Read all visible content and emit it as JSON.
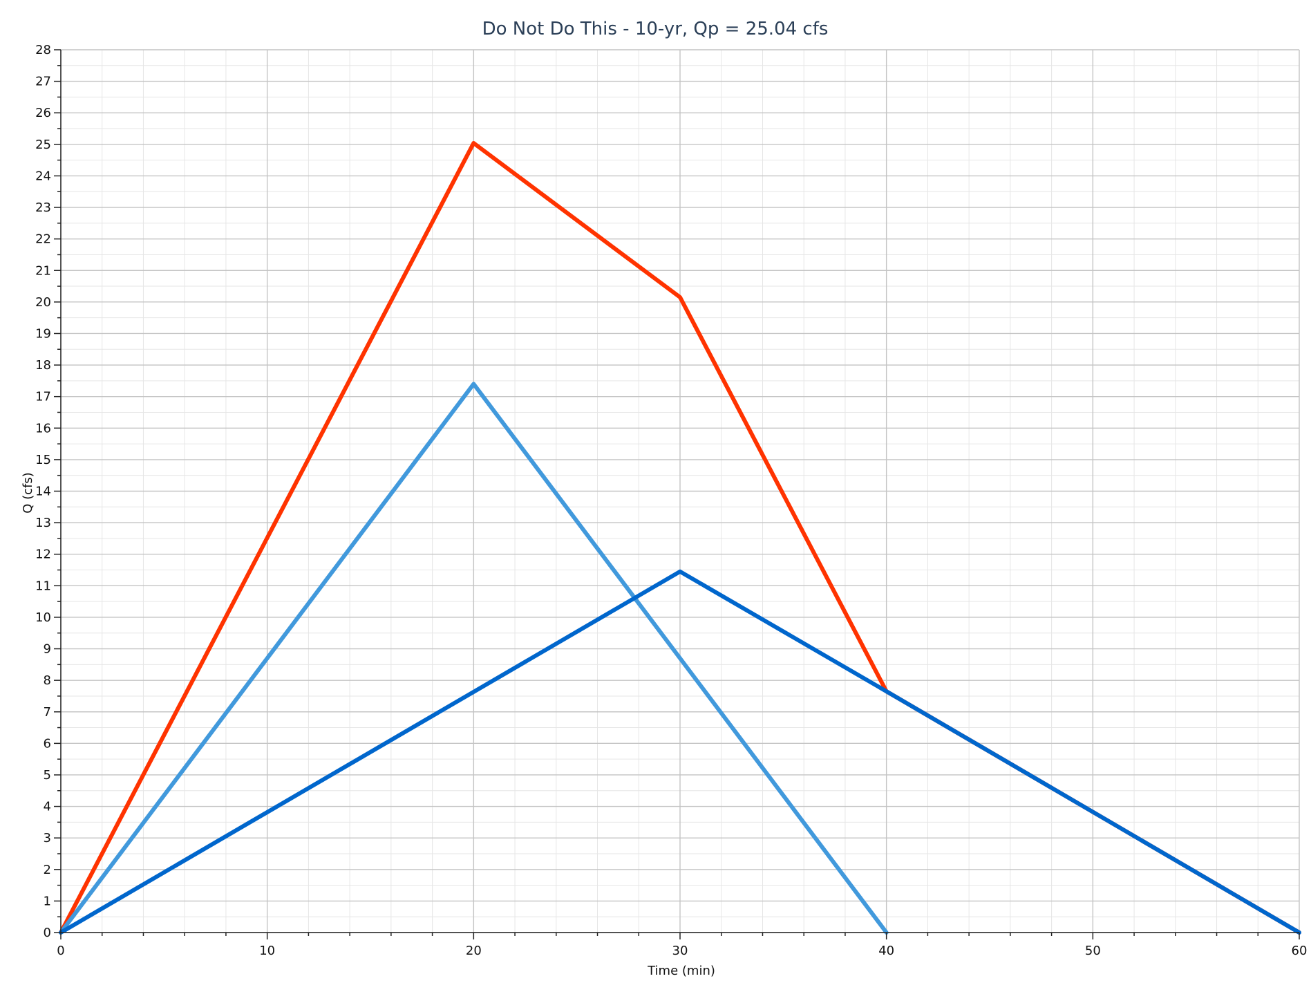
{
  "chart_data": {
    "type": "line",
    "title": "Do Not Do This - 10-yr, Qp = 25.04 cfs",
    "xlabel": "Time (min)",
    "ylabel": "Q (cfs)",
    "xlim": [
      0,
      60
    ],
    "ylim": [
      0,
      28
    ],
    "x_major_step": 10,
    "x_minor_step": 2,
    "y_major_step": 1,
    "y_minor_step": 0.5,
    "grid": true,
    "series": [
      {
        "color": "#ff3300",
        "points": [
          [
            0,
            0
          ],
          [
            20,
            25.04
          ],
          [
            30,
            20.15
          ],
          [
            40,
            7.65
          ],
          [
            60,
            0
          ]
        ]
      },
      {
        "color": "#4199dc",
        "points": [
          [
            0,
            0
          ],
          [
            20,
            17.4
          ],
          [
            40,
            0
          ]
        ]
      },
      {
        "color": "#0066cc",
        "points": [
          [
            0,
            0
          ],
          [
            30,
            11.45
          ],
          [
            40,
            7.65
          ],
          [
            60,
            0
          ]
        ]
      }
    ]
  }
}
